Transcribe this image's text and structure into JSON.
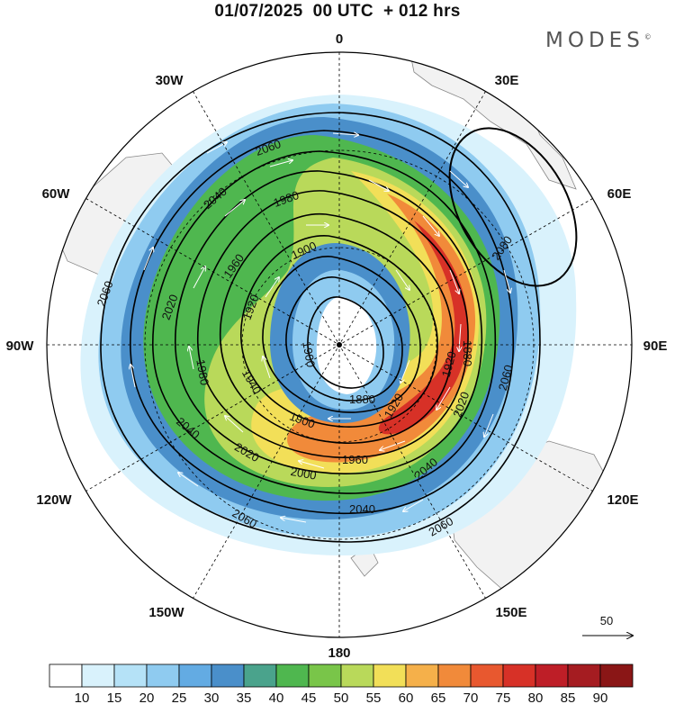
{
  "header": {
    "title": "01/07/2025  00 UTC  + 012 hrs",
    "brand": "MODES"
  },
  "map": {
    "projection": "south-polar-stereographic",
    "longitude_labels": [
      "0",
      "30E",
      "60E",
      "90E",
      "120E",
      "150E",
      "180",
      "150W",
      "120W",
      "90W",
      "60W",
      "30W"
    ],
    "contours": [
      {
        "label": "2080"
      },
      {
        "label": "2060"
      },
      {
        "label": "2040"
      },
      {
        "label": "2020"
      },
      {
        "label": "2000"
      },
      {
        "label": "1980"
      },
      {
        "label": "1960"
      },
      {
        "label": "1940"
      },
      {
        "label": "1920"
      },
      {
        "label": "1900"
      },
      {
        "label": "1880"
      }
    ],
    "wind_reference": {
      "value": "50"
    },
    "colors": {
      "land": "#f2f2f2",
      "coast": "#888888",
      "contour": "#000000"
    }
  },
  "colorbar": {
    "labels": [
      "10",
      "15",
      "20",
      "25",
      "30",
      "35",
      "40",
      "45",
      "50",
      "55",
      "60",
      "65",
      "70",
      "75",
      "80",
      "85",
      "90"
    ],
    "colors": [
      "#ffffff",
      "#d9f2fc",
      "#b5e2f7",
      "#8fcbf0",
      "#63abe3",
      "#4a8fca",
      "#4aa38c",
      "#4fb74f",
      "#79c549",
      "#b9d95a",
      "#f2df58",
      "#f5b04a",
      "#f18a3a",
      "#e8582f",
      "#d73127",
      "#be1e27",
      "#a51c21",
      "#8a1616"
    ]
  }
}
